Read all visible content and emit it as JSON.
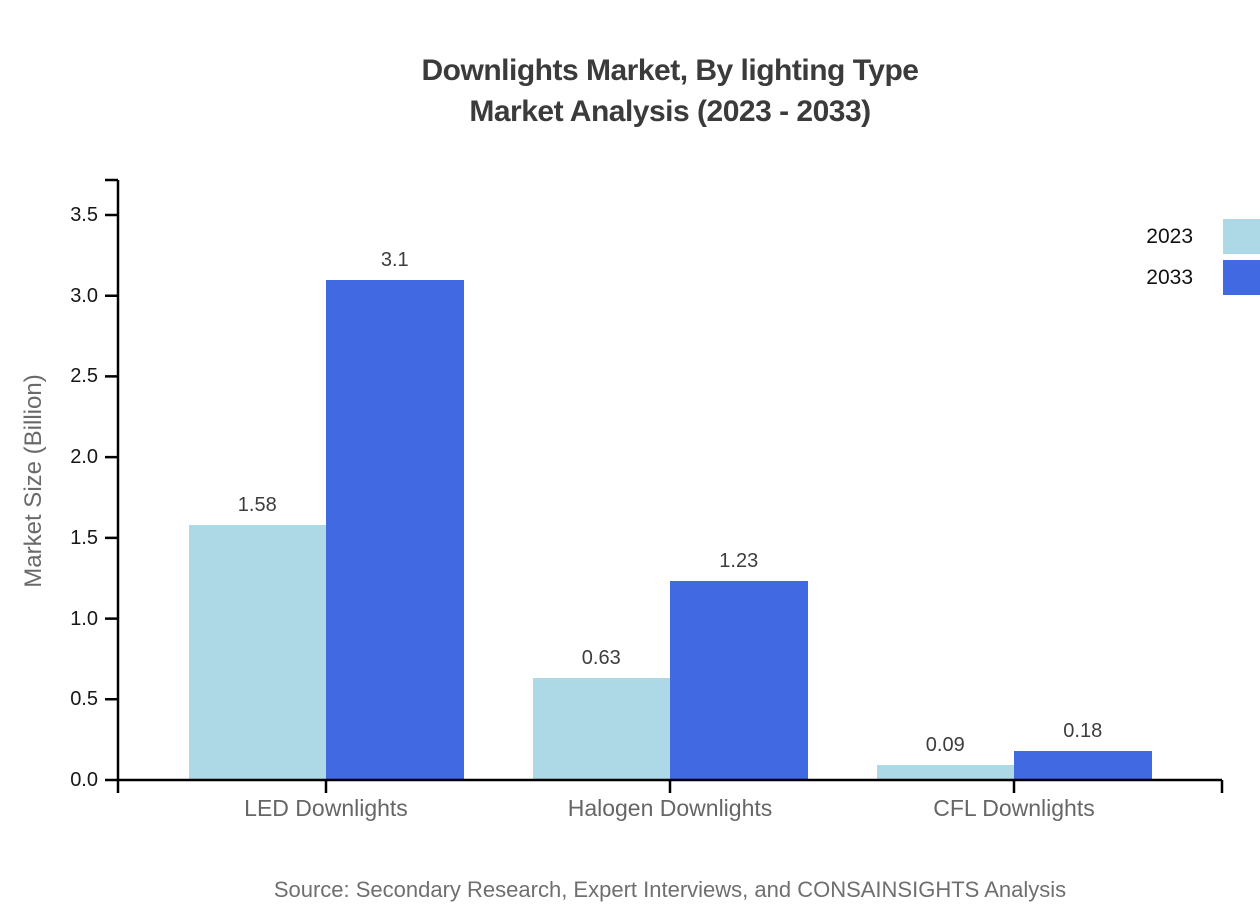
{
  "title": {
    "line1": "Downlights Market, By lighting Type",
    "line2": "Market Analysis (2023 - 2033)"
  },
  "source_note": "Source: Secondary Research, Expert Interviews, and CONSAINSIGHTS Analysis",
  "chart_data": {
    "type": "bar",
    "title": "Downlights Market, By lighting Type Market Analysis (2023 - 2033)",
    "categories": [
      "LED Downlights",
      "Halogen Downlights",
      "CFL Downlights"
    ],
    "series": [
      {
        "name": "2023",
        "color": "#ADD8E6",
        "values": [
          1.58,
          0.63,
          0.09
        ]
      },
      {
        "name": "2033",
        "color": "#4169E1",
        "values": [
          3.1,
          1.23,
          0.18
        ]
      }
    ],
    "xlabel": "",
    "ylabel": "Market Size (Billion)",
    "ylim": [
      0,
      3.72
    ],
    "yticks": [
      "0.0",
      "0.5",
      "1.0",
      "1.5",
      "2.0",
      "2.5",
      "3.0",
      "3.5"
    ],
    "grid": false,
    "legend_position": "upper-right",
    "bar_value_labels": true,
    "axis_color": "#000000"
  }
}
